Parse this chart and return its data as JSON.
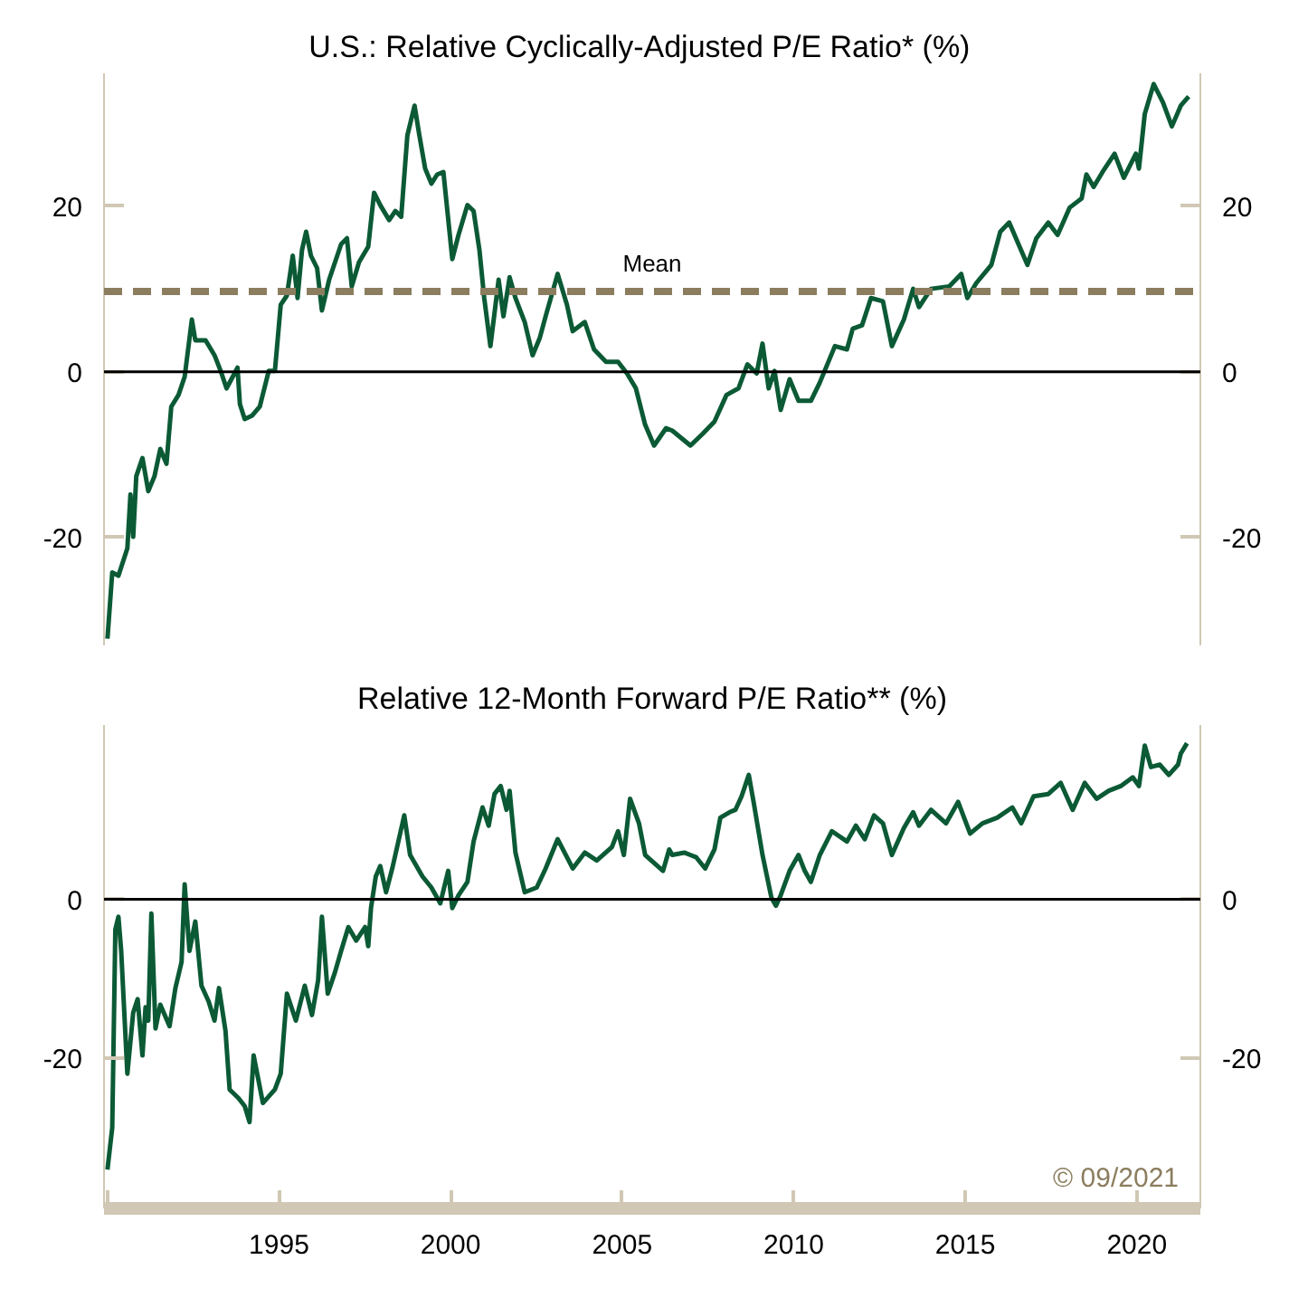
{
  "chart_data": [
    {
      "type": "line",
      "title": "U.S.:    Relative Cyclically-Adjusted P/E Ratio* (%)",
      "xlim": [
        1989.9,
        2021.85
      ],
      "ylim": [
        -33,
        36
      ],
      "yticks": [
        -20,
        0,
        20
      ],
      "y2lim": [
        -33,
        36
      ],
      "y2ticks": [
        -20,
        0,
        20
      ],
      "tick_labels": "y",
      "grid": false,
      "marker": "none",
      "line_style": "solid",
      "ref_lines": [
        {
          "axis": "y",
          "value": 0,
          "label": null,
          "color": "#000000",
          "line_style": "solid"
        },
        {
          "axis": "y",
          "value": 9.7,
          "label": "Mean",
          "color": "#8b7d5e",
          "line_style": "dashed"
        }
      ],
      "series": [
        {
          "color": "#0b5a35",
          "x": [
            1990.0,
            1990.14,
            1990.32,
            1990.58,
            1990.67,
            1990.75,
            1990.84,
            1991.02,
            1991.19,
            1991.37,
            1991.54,
            1991.72,
            1991.86,
            1992.07,
            1992.25,
            1992.46,
            1992.56,
            1992.86,
            1993.12,
            1993.3,
            1993.47,
            1993.65,
            1993.79,
            1993.86,
            1994.0,
            1994.21,
            1994.44,
            1994.7,
            1994.88,
            1995.05,
            1995.23,
            1995.4,
            1995.54,
            1995.67,
            1995.79,
            1995.93,
            1996.11,
            1996.25,
            1996.46,
            1996.81,
            1996.98,
            1997.12,
            1997.33,
            1997.6,
            1997.77,
            1997.95,
            1998.21,
            1998.39,
            1998.56,
            1998.74,
            1998.95,
            1999.09,
            1999.26,
            1999.44,
            1999.61,
            1999.79,
            2000.05,
            2000.23,
            2000.49,
            2000.67,
            2000.84,
            2000.98,
            2001.16,
            2001.4,
            2001.54,
            2001.72,
            2001.89,
            2002.16,
            2002.39,
            2002.6,
            2002.77,
            2003.12,
            2003.39,
            2003.56,
            2003.91,
            2004.18,
            2004.53,
            2004.88,
            2005.14,
            2005.4,
            2005.67,
            2005.93,
            2006.28,
            2006.46,
            2006.99,
            2007.34,
            2007.69,
            2008.04,
            2008.39,
            2008.65,
            2008.92,
            2009.09,
            2009.27,
            2009.44,
            2009.62,
            2009.88,
            2010.14,
            2010.5,
            2010.76,
            2011.2,
            2011.55,
            2011.72,
            2011.99,
            2012.25,
            2012.6,
            2012.86,
            2013.21,
            2013.48,
            2013.65,
            2014.0,
            2014.53,
            2014.88,
            2015.06,
            2015.32,
            2015.76,
            2016.02,
            2016.28,
            2016.55,
            2016.81,
            2017.07,
            2017.42,
            2017.69,
            2018.04,
            2018.39,
            2018.53,
            2018.74,
            2019.0,
            2019.35,
            2019.62,
            2019.97,
            2020.06,
            2020.23,
            2020.49,
            2020.76,
            2021.02,
            2021.28,
            2021.51
          ],
          "values": [
            -32.2,
            -24.2,
            -24.6,
            -21.3,
            -14.8,
            -19.9,
            -12.6,
            -10.4,
            -14.4,
            -12.6,
            -9.3,
            -11.1,
            -4.2,
            -2.8,
            -0.6,
            6.3,
            3.8,
            3.8,
            2.0,
            0.1,
            -2.0,
            -0.6,
            0.5,
            -3.9,
            -5.7,
            -5.3,
            -4.2,
            0.1,
            0.1,
            8.1,
            9.2,
            14.0,
            8.9,
            14.7,
            16.9,
            14.0,
            12.5,
            7.4,
            11.1,
            15.4,
            16.1,
            10.3,
            13.2,
            15.1,
            21.6,
            20.1,
            18.3,
            19.4,
            18.7,
            28.5,
            32.1,
            28.5,
            24.5,
            22.7,
            23.8,
            24.1,
            13.6,
            16.5,
            20.1,
            19.4,
            14.7,
            8.9,
            3.1,
            11.1,
            6.7,
            11.4,
            8.9,
            6.0,
            2.0,
            4.1,
            6.7,
            11.8,
            8.1,
            4.9,
            6.0,
            2.7,
            1.2,
            1.2,
            -0.2,
            -2.0,
            -6.4,
            -8.9,
            -6.8,
            -7.1,
            -8.9,
            -7.5,
            -6.0,
            -2.8,
            -2.0,
            0.9,
            -0.2,
            3.4,
            -2.0,
            0.1,
            -4.6,
            -0.9,
            -3.5,
            -3.5,
            -1.3,
            3.1,
            2.7,
            5.2,
            5.6,
            8.9,
            8.5,
            3.1,
            6.3,
            10.0,
            7.8,
            10.0,
            10.3,
            11.8,
            8.9,
            10.7,
            12.9,
            16.9,
            18.0,
            15.4,
            12.9,
            16.1,
            18.0,
            16.5,
            19.8,
            20.9,
            23.8,
            22.3,
            24.1,
            26.3,
            23.4,
            26.3,
            24.5,
            31.1,
            34.7,
            32.5,
            29.6,
            32.1,
            33.2
          ]
        }
      ]
    },
    {
      "type": "line",
      "title": "Relative 12-Month Forward P/E Ratio** (%)",
      "xlim": [
        1989.9,
        2021.85
      ],
      "xticks": [
        {
          "value": 1990,
          "label": null
        },
        1995,
        2000,
        2005,
        2010,
        2015,
        2020
      ],
      "ylim": [
        -39,
        22
      ],
      "yticks": [
        -20,
        0
      ],
      "y2lim": [
        -39,
        22
      ],
      "y2ticks": [
        -20,
        0
      ],
      "grid": false,
      "marker": "none",
      "line_style": "solid",
      "ref_lines": [
        {
          "axis": "y",
          "value": 0,
          "label": null,
          "color": "#000000",
          "line_style": "solid"
        }
      ],
      "annotations": [
        "© 09/2021"
      ],
      "series": [
        {
          "color": "#0b5a35",
          "x": [
            1990.0,
            1990.14,
            1990.23,
            1990.32,
            1990.4,
            1990.58,
            1990.75,
            1990.88,
            1991.02,
            1991.11,
            1991.19,
            1991.28,
            1991.4,
            1991.54,
            1991.81,
            1991.98,
            1992.16,
            1992.25,
            1992.39,
            1992.56,
            1992.74,
            1992.95,
            1993.12,
            1993.25,
            1993.44,
            1993.56,
            1993.82,
            1994.0,
            1994.14,
            1994.26,
            1994.53,
            1994.88,
            1995.05,
            1995.23,
            1995.49,
            1995.75,
            1995.96,
            1996.14,
            1996.25,
            1996.42,
            1996.63,
            1996.81,
            1997.02,
            1997.25,
            1997.51,
            1997.6,
            1997.68,
            1997.82,
            1997.95,
            1998.12,
            1998.3,
            1998.65,
            1998.82,
            1999.18,
            1999.44,
            1999.7,
            1999.93,
            2000.05,
            2000.23,
            2000.49,
            2000.67,
            2000.93,
            2001.11,
            2001.28,
            2001.46,
            2001.63,
            2001.72,
            2001.89,
            2002.16,
            2002.51,
            2002.77,
            2003.12,
            2003.56,
            2003.91,
            2004.26,
            2004.7,
            2004.88,
            2005.05,
            2005.23,
            2005.49,
            2005.67,
            2005.93,
            2006.19,
            2006.37,
            2006.46,
            2006.81,
            2007.16,
            2007.42,
            2007.69,
            2007.86,
            2008.13,
            2008.3,
            2008.48,
            2008.69,
            2008.83,
            2009.09,
            2009.35,
            2009.48,
            2009.62,
            2009.88,
            2010.14,
            2010.32,
            2010.5,
            2010.76,
            2011.11,
            2011.55,
            2011.81,
            2012.07,
            2012.34,
            2012.6,
            2012.86,
            2013.21,
            2013.48,
            2013.65,
            2014.0,
            2014.44,
            2014.79,
            2015.14,
            2015.5,
            2015.93,
            2016.37,
            2016.63,
            2016.99,
            2017.42,
            2017.78,
            2018.13,
            2018.48,
            2018.83,
            2019.18,
            2019.53,
            2019.88,
            2020.06,
            2020.23,
            2020.41,
            2020.67,
            2020.93,
            2021.2,
            2021.28,
            2021.46
          ],
          "values": [
            -34.1,
            -28.8,
            -3.8,
            -2.2,
            -6.5,
            -22.0,
            -14.3,
            -12.6,
            -19.7,
            -13.6,
            -15.3,
            -1.8,
            -16.3,
            -13.3,
            -16.0,
            -11.2,
            -7.9,
            1.9,
            -6.5,
            -2.8,
            -10.9,
            -12.9,
            -15.3,
            -11.2,
            -16.6,
            -24.0,
            -25.1,
            -26.1,
            -28.1,
            -19.7,
            -25.7,
            -24.0,
            -22.0,
            -11.9,
            -15.3,
            -10.9,
            -14.6,
            -10.2,
            -2.2,
            -11.9,
            -9.2,
            -6.5,
            -3.5,
            -5.2,
            -3.5,
            -5.9,
            -1.1,
            2.9,
            4.2,
            0.9,
            3.9,
            10.6,
            5.6,
            2.9,
            1.5,
            -0.5,
            3.6,
            -1.1,
            0.5,
            2.2,
            7.3,
            11.6,
            9.3,
            13.3,
            14.3,
            11.3,
            13.7,
            5.9,
            0.9,
            1.5,
            3.9,
            7.6,
            3.9,
            5.9,
            4.9,
            6.6,
            8.6,
            5.6,
            12.7,
            9.6,
            5.6,
            4.6,
            3.6,
            6.3,
            5.6,
            5.9,
            5.3,
            3.9,
            6.3,
            10.3,
            11.0,
            11.3,
            13.0,
            15.7,
            12.3,
            5.6,
            0.2,
            -0.8,
            0.5,
            3.6,
            5.6,
            3.6,
            2.2,
            5.6,
            8.6,
            7.3,
            9.3,
            7.6,
            10.6,
            9.6,
            5.6,
            9.0,
            11.0,
            9.3,
            11.3,
            9.6,
            12.3,
            8.3,
            9.6,
            10.3,
            11.6,
            9.6,
            13.0,
            13.3,
            14.7,
            11.3,
            14.7,
            12.7,
            13.7,
            14.3,
            15.4,
            14.3,
            19.4,
            16.7,
            17.0,
            15.7,
            17.0,
            18.4,
            19.7
          ]
        }
      ]
    }
  ]
}
